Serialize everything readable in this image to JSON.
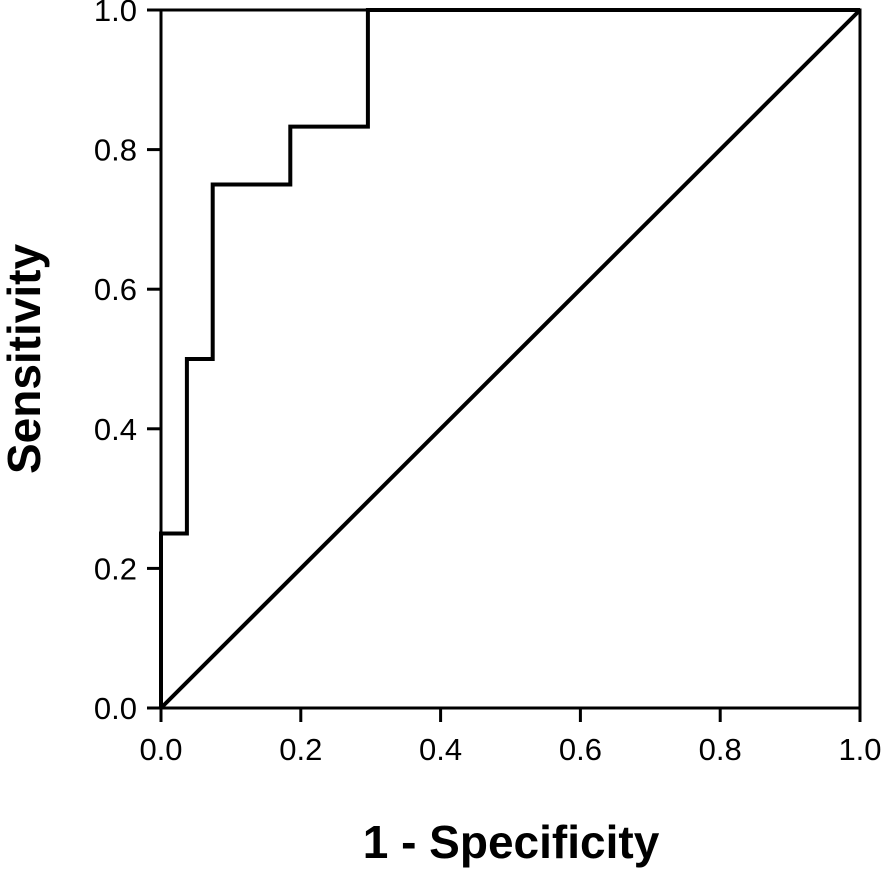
{
  "chart_data": {
    "type": "line",
    "title": "",
    "xlabel": "1 - Specificity",
    "ylabel": "Sensitivity",
    "xlim": [
      0,
      1
    ],
    "ylim": [
      0,
      1
    ],
    "xticks": [
      0.0,
      0.2,
      0.4,
      0.6,
      0.8,
      1.0
    ],
    "yticks": [
      0.0,
      0.2,
      0.4,
      0.6,
      0.8,
      1.0
    ],
    "xtick_labels": [
      "0.0",
      "0.2",
      "0.4",
      "0.6",
      "0.8",
      "1.0"
    ],
    "ytick_labels": [
      "0.0",
      "0.2",
      "0.4",
      "0.6",
      "0.8",
      "1.0"
    ],
    "grid": false,
    "legend": "none",
    "series": [
      {
        "x": [
          0,
          0,
          0.037,
          0.037,
          0.074,
          0.074,
          0.185,
          0.185,
          0.296,
          0.296,
          1.0
        ],
        "y": [
          0,
          0.25,
          0.25,
          0.5,
          0.5,
          0.75,
          0.75,
          0.833,
          0.833,
          1.0,
          1.0
        ],
        "step": true,
        "color": "#000000"
      },
      {
        "x": [
          0,
          1
        ],
        "y": [
          0,
          1
        ],
        "color": "#000000"
      }
    ]
  }
}
